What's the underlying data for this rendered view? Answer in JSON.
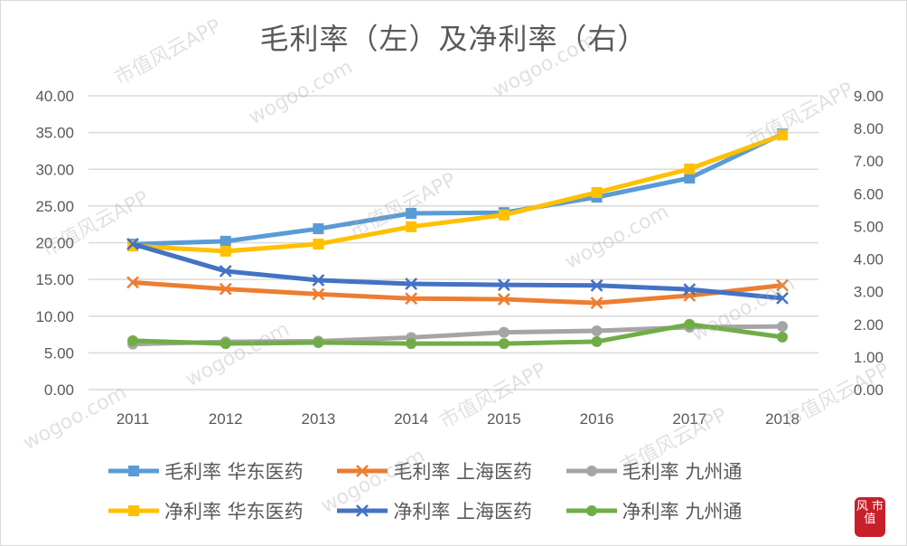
{
  "chart_data": {
    "type": "line",
    "title": "毛利率（左）及净利率（右）",
    "categories": [
      "2011",
      "2012",
      "2013",
      "2014",
      "2015",
      "2016",
      "2017",
      "2018"
    ],
    "y_left": {
      "range": [
        0,
        40
      ],
      "ticks": [
        "0.00",
        "5.00",
        "10.00",
        "15.00",
        "20.00",
        "25.00",
        "30.00",
        "35.00",
        "40.00"
      ]
    },
    "y_right": {
      "range": [
        0,
        9
      ],
      "ticks": [
        "0.00",
        "1.00",
        "2.00",
        "3.00",
        "4.00",
        "5.00",
        "6.00",
        "7.00",
        "8.00",
        "9.00"
      ]
    },
    "grid": true,
    "legend_placement": "bottom",
    "series": [
      {
        "name": "毛利率 华东医药",
        "axis": "left",
        "color": "#5b9bd5",
        "marker": "square",
        "values": [
          19.8,
          20.2,
          21.9,
          24.0,
          24.1,
          26.2,
          28.8,
          34.8
        ]
      },
      {
        "name": "毛利率 上海医药",
        "axis": "left",
        "color": "#ed7d31",
        "marker": "x",
        "values": [
          14.6,
          13.7,
          13.0,
          12.4,
          12.3,
          11.8,
          12.8,
          14.2
        ]
      },
      {
        "name": "毛利率 九州通",
        "axis": "left",
        "color": "#a5a5a5",
        "marker": "circle",
        "values": [
          6.2,
          6.5,
          6.6,
          7.1,
          7.8,
          8.0,
          8.5,
          8.6
        ]
      },
      {
        "name": "净利率 华东医药",
        "axis": "right",
        "color": "#ffc000",
        "marker": "square",
        "values": [
          4.4,
          4.24,
          4.46,
          4.99,
          5.35,
          6.04,
          6.76,
          7.8
        ]
      },
      {
        "name": "净利率 上海医药",
        "axis": "right",
        "color": "#4472c4",
        "marker": "x",
        "values": [
          4.46,
          3.63,
          3.35,
          3.24,
          3.21,
          3.19,
          3.07,
          2.8
        ]
      },
      {
        "name": "净利率 九州通",
        "axis": "right",
        "color": "#70ad47",
        "marker": "circle",
        "values": [
          1.5,
          1.41,
          1.44,
          1.41,
          1.41,
          1.47,
          2.0,
          1.61
        ]
      }
    ]
  },
  "watermark": {
    "app": "市值风云APP",
    "site": "wogoo.com"
  },
  "logo": {
    "text": "风 市值"
  }
}
